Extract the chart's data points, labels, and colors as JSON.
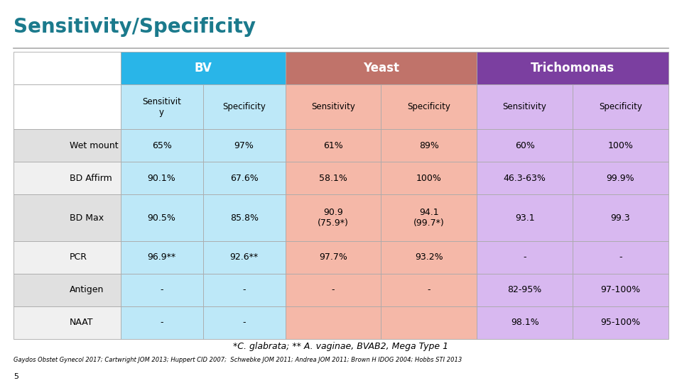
{
  "title": "Sensitivity/Specificity",
  "title_color": "#1B7A8C",
  "background_color": "#FFFFFF",
  "header_row1_labels": [
    "BV",
    "Yeast",
    "Trichomonas"
  ],
  "header_row2_labels": [
    "Sensitivit\ny",
    "Specificity",
    "Sensitivity",
    "Specificity",
    "Sensitivity",
    "Specificity"
  ],
  "rows": [
    [
      "Wet mount",
      "65%",
      "97%",
      "61%",
      "89%",
      "60%",
      "100%"
    ],
    [
      "BD Affirm",
      "90.1%",
      "67.6%",
      "58.1%",
      "100%",
      "46.3-63%",
      "99.9%"
    ],
    [
      "BD Max",
      "90.5%",
      "85.8%",
      "90.9\n(75.9*)",
      "94.1\n(99.7*)",
      "93.1",
      "99.3"
    ],
    [
      "PCR",
      "96.9**",
      "92.6**",
      "97.7%",
      "93.2%",
      "-",
      "-"
    ],
    [
      "Antigen",
      "-",
      "-",
      "-",
      "-",
      "82-95%",
      "97-100%"
    ],
    [
      "NAAT",
      "-",
      "-",
      "",
      "",
      "98.1%",
      "95-100%"
    ]
  ],
  "bv_header_color": "#29B5E8",
  "yeast_header_color": "#C0736A",
  "trich_header_color": "#7B3FA0",
  "bv_light": "#BDE8F8",
  "yeast_light": "#F5B8A8",
  "trich_light": "#D8B8F0",
  "row_label_bg_odd": "#E0E0E0",
  "row_label_bg_even": "#F0F0F0",
  "footer_italic": "*C. glabrata; ** A. vaginae, BVAB2, Mega Type 1",
  "citation": "Gaydos Obstet Gynecol 2017; Cartwright JOM 2013; Huppert CID 2007;  Schwebke JOM 2011; Andrea JOM 2011; Brown H IDOG 2004; Hobbs STI 2013",
  "slide_number": "5",
  "divider_color": "#AAAAAA",
  "edge_color": "#AAAAAA"
}
